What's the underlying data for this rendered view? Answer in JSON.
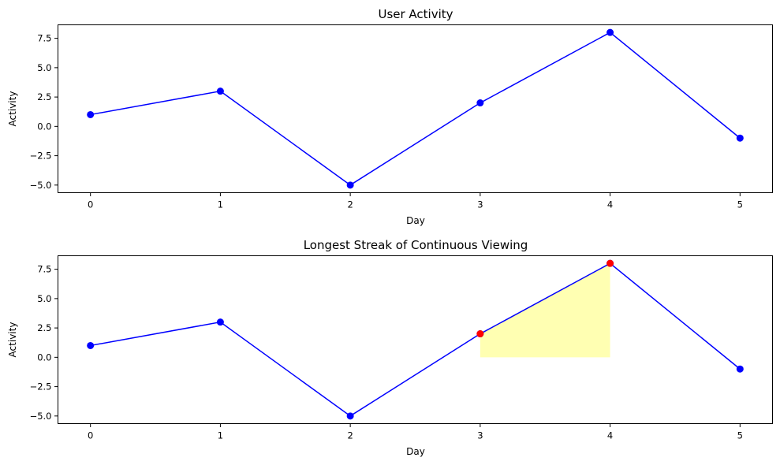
{
  "chart_data": [
    {
      "type": "line",
      "title": "User Activity",
      "xlabel": "Day",
      "ylabel": "Activity",
      "x": [
        0,
        1,
        2,
        3,
        4,
        5
      ],
      "series": [
        {
          "values": [
            1,
            3,
            -5,
            2,
            8,
            -1
          ],
          "color": "#0000ff",
          "marker": "circle"
        }
      ],
      "xlim": [
        -0.25,
        5.25
      ],
      "ylim": [
        -5.65,
        8.65
      ],
      "xticks": [
        0,
        1,
        2,
        3,
        4,
        5
      ],
      "yticks": [
        -5.0,
        -2.5,
        0.0,
        2.5,
        5.0,
        7.5
      ],
      "xtick_labels": [
        "0",
        "1",
        "2",
        "3",
        "4",
        "5"
      ],
      "ytick_labels": [
        "−5.0",
        "−2.5",
        "0.0",
        "2.5",
        "5.0",
        "7.5"
      ],
      "grid": false
    },
    {
      "type": "line",
      "title": "Longest Streak of Continuous Viewing",
      "xlabel": "Day",
      "ylabel": "Activity",
      "x": [
        0,
        1,
        2,
        3,
        4,
        5
      ],
      "series": [
        {
          "values": [
            1,
            3,
            -5,
            2,
            8,
            -1
          ],
          "color": "#0000ff",
          "marker": "circle"
        }
      ],
      "highlight": {
        "x": [
          3,
          4
        ],
        "values": [
          2,
          8
        ],
        "marker_color": "#ff0000",
        "fill_color": "#ffff00",
        "fill_opacity": 0.3
      },
      "xlim": [
        -0.25,
        5.25
      ],
      "ylim": [
        -5.65,
        8.65
      ],
      "xticks": [
        0,
        1,
        2,
        3,
        4,
        5
      ],
      "yticks": [
        -5.0,
        -2.5,
        0.0,
        2.5,
        5.0,
        7.5
      ],
      "xtick_labels": [
        "0",
        "1",
        "2",
        "3",
        "4",
        "5"
      ],
      "ytick_labels": [
        "−5.0",
        "−2.5",
        "0.0",
        "2.5",
        "5.0",
        "7.5"
      ],
      "grid": false
    }
  ]
}
